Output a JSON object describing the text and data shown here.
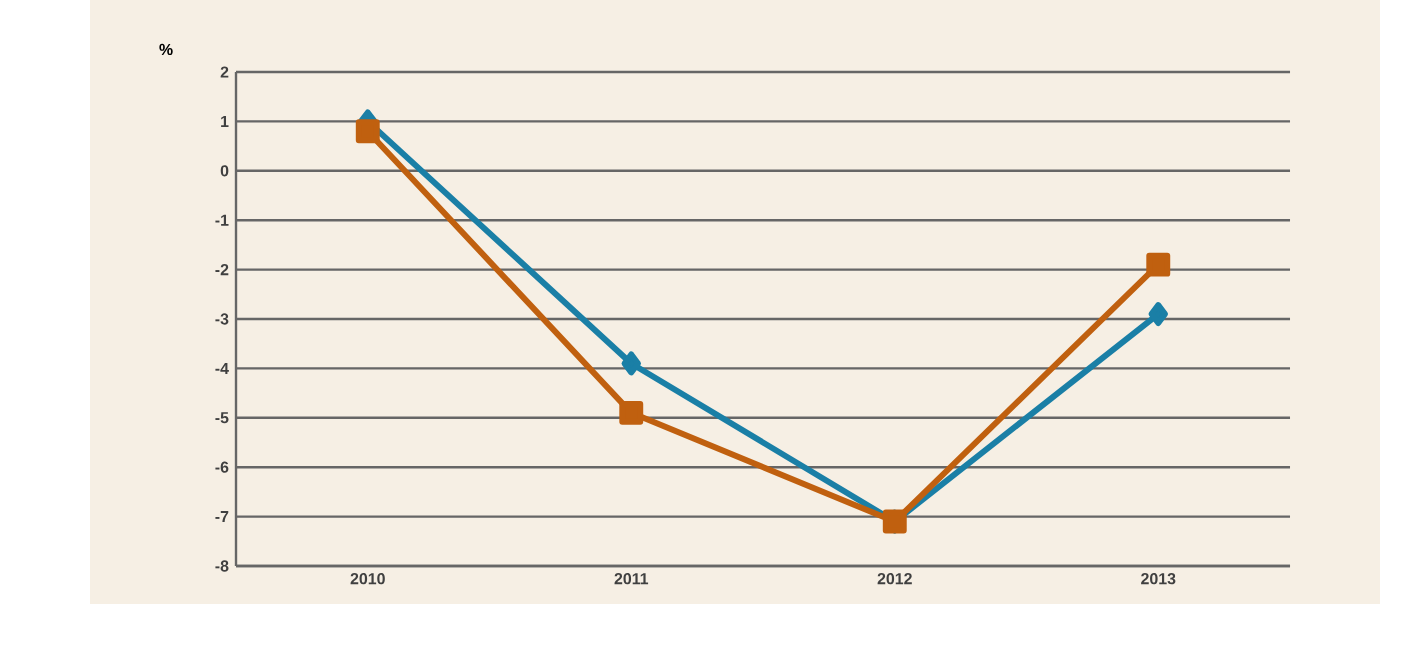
{
  "chart_data": {
    "type": "line",
    "ylabel": "%",
    "categories": [
      "2010",
      "2011",
      "2012",
      "2013"
    ],
    "series": [
      {
        "color": "#1a7fa6",
        "marker": "diamond",
        "values": [
          1,
          -3.9,
          -7.1,
          -2.9
        ]
      },
      {
        "color": "#c0600f",
        "marker": "square",
        "values": [
          0.8,
          -4.9,
          -7.1,
          -1.9
        ]
      }
    ],
    "ylim": [
      -8,
      2
    ],
    "yticks": [
      -8,
      -7,
      -6,
      -5,
      -4,
      -3,
      -2,
      -1,
      0,
      1,
      2
    ],
    "grid": "y"
  }
}
